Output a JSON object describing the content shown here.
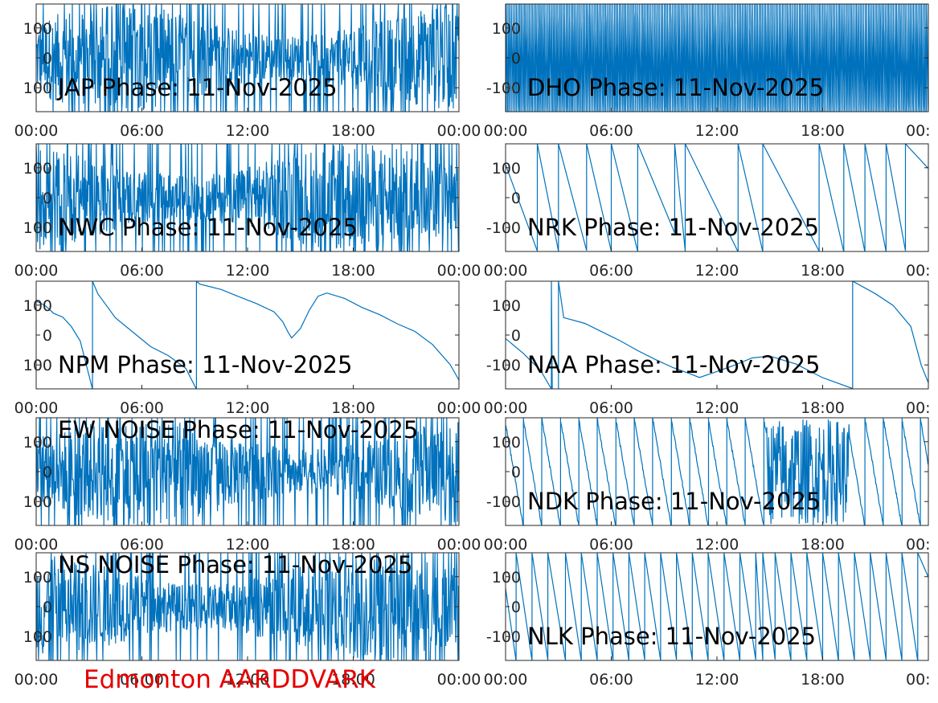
{
  "footer_label": "Edmonton AARDDVARK",
  "colors": {
    "line": "#0072bd",
    "footer": "#e50000",
    "axes": "#262626"
  },
  "chart_data": [
    {
      "type": "line",
      "title": "JAP Phase: 11-Nov-2025",
      "pattern": "noise",
      "xticks": [
        "00:00",
        "06:00",
        "12:00",
        "18:00",
        "00:00"
      ],
      "xlim": [
        0,
        24
      ],
      "yticks": [
        "100",
        "0",
        "100"
      ],
      "ylim": [
        -180,
        180
      ],
      "series": [
        {
          "x": [
            0,
            24
          ],
          "y": [
            -180,
            180
          ]
        }
      ]
    },
    {
      "type": "line",
      "title": "DHO Phase: 11-Nov-2025",
      "pattern": "fast-wrap",
      "xticks": [
        "00:00",
        "06:00",
        "12:00",
        "18:00",
        "00:"
      ],
      "xlim": [
        0,
        24
      ],
      "yticks": [
        "100",
        "0",
        "-100"
      ],
      "ylim": [
        -180,
        180
      ],
      "series": [
        {
          "x": [
            0,
            24
          ],
          "y": [
            -180,
            180
          ]
        }
      ]
    },
    {
      "type": "line",
      "title": "NWC Phase: 11-Nov-2025",
      "pattern": "noise",
      "xticks": [
        "00:00",
        "06:00",
        "12:00",
        "18:00",
        "00:00"
      ],
      "xlim": [
        0,
        24
      ],
      "yticks": [
        "100",
        "0",
        "100"
      ],
      "ylim": [
        -180,
        180
      ],
      "series": [
        {
          "x": [
            0,
            24
          ],
          "y": [
            -180,
            180
          ]
        }
      ]
    },
    {
      "type": "line",
      "title": "NRK Phase: 11-Nov-2025",
      "pattern": "sawtooth",
      "xticks": [
        "00:00",
        "06:00",
        "12:00",
        "18:00",
        "00:"
      ],
      "xlim": [
        0,
        24
      ],
      "yticks": [
        "100",
        "0",
        "-100"
      ],
      "ylim": [
        -180,
        180
      ],
      "series": [
        {
          "x": [
            0,
            1.8,
            1.8,
            3.0,
            3.0,
            4.6,
            4.6,
            6.0,
            6.0,
            7.5,
            7.5,
            9.6,
            9.6,
            10.2,
            10.2,
            13.2,
            13.2,
            14.6,
            14.6,
            17.8,
            17.8,
            19.2,
            19.2,
            20.4,
            20.4,
            21.6,
            21.6,
            22.7,
            22.7,
            24
          ],
          "y": [
            110,
            -180,
            180,
            -180,
            180,
            -180,
            180,
            -180,
            180,
            -180,
            180,
            -120,
            180,
            -180,
            180,
            -180,
            180,
            -180,
            180,
            -180,
            180,
            -180,
            180,
            -180,
            180,
            -180,
            180,
            -180,
            180,
            100
          ]
        }
      ]
    },
    {
      "type": "line",
      "title": "NPM Phase: 11-Nov-2025",
      "pattern": "smooth",
      "xticks": [
        "00:00",
        "06:00",
        "12:00",
        "18:00",
        "00:00"
      ],
      "xlim": [
        0,
        24
      ],
      "yticks": [
        "100",
        "0",
        "100"
      ],
      "ylim": [
        -180,
        180
      ],
      "series": [
        {
          "x": [
            0,
            0.5,
            1.0,
            1.5,
            2.0,
            2.5,
            3.2,
            3.2,
            3.5,
            4.5,
            5.5,
            6.5,
            7.5,
            8.5,
            9.1,
            9.1,
            9.3,
            10.5,
            11.5,
            12.5,
            13.5,
            14.0,
            14.3,
            14.5,
            15.0,
            15.5,
            16.0,
            16.5,
            17.5,
            18.5,
            19.5,
            20.5,
            21.5,
            22.5,
            23.5,
            24.0
          ],
          "y": [
            115,
            100,
            75,
            60,
            30,
            -20,
            -180,
            180,
            140,
            60,
            10,
            -40,
            -70,
            -110,
            -180,
            180,
            170,
            155,
            130,
            105,
            75,
            45,
            10,
            -10,
            20,
            80,
            130,
            140,
            120,
            95,
            65,
            40,
            10,
            -30,
            -100,
            -150
          ]
        }
      ]
    },
    {
      "type": "line",
      "title": "NAA Phase: 11-Nov-2025",
      "pattern": "smooth",
      "xticks": [
        "00:00",
        "06:00",
        "12:00",
        "18:00",
        "00:"
      ],
      "xlim": [
        0,
        24
      ],
      "yticks": [
        "100",
        "0",
        "-100"
      ],
      "ylim": [
        -180,
        180
      ],
      "series": [
        {
          "x": [
            0,
            1.0,
            2.0,
            2.6,
            2.6,
            2.65,
            3.0,
            3.0,
            3.3,
            4.5,
            5.5,
            6.5,
            7.5,
            8.5,
            9.5,
            10.5,
            11.0,
            12.0,
            13.0,
            14.0,
            15.0,
            16.5,
            18.0,
            19.7,
            19.7,
            21.0,
            22.0,
            23.0,
            23.6,
            24.0
          ],
          "y": [
            -10,
            -60,
            -120,
            -180,
            180,
            -180,
            -180,
            180,
            60,
            40,
            10,
            -20,
            -50,
            -80,
            -110,
            -130,
            -140,
            -120,
            -100,
            -75,
            -70,
            -100,
            -140,
            -180,
            180,
            140,
            100,
            30,
            -100,
            -160
          ]
        }
      ]
    },
    {
      "type": "line",
      "title": "EW NOISE Phase: 11-Nov-2025",
      "pattern": "noise",
      "xticks": [
        "00:00",
        "06:00",
        "12:00",
        "18:00",
        "00:00"
      ],
      "xlim": [
        0,
        24
      ],
      "yticks": [
        "100",
        "0",
        "100"
      ],
      "ylim": [
        -180,
        180
      ],
      "series": [
        {
          "x": [
            0,
            24
          ],
          "y": [
            -180,
            180
          ]
        }
      ]
    },
    {
      "type": "line",
      "title": "NDK Phase: 11-Nov-2025",
      "pattern": "sawtooth-noise",
      "xticks": [
        "00:00",
        "06:00",
        "12:00",
        "18:00",
        "00:"
      ],
      "xlim": [
        0,
        24
      ],
      "yticks": [
        "100",
        "0",
        "-100"
      ],
      "ylim": [
        -180,
        180
      ],
      "series": [
        {
          "x": [
            0,
            24
          ],
          "y": [
            -180,
            180
          ]
        }
      ]
    },
    {
      "type": "line",
      "title": "NS NOISE Phase: 11-Nov-2025",
      "pattern": "noise",
      "xticks": [
        "00:00",
        "06:00",
        "12:00",
        "18:00",
        "00:00"
      ],
      "xlim": [
        0,
        24
      ],
      "yticks": [
        "100",
        "0",
        "100"
      ],
      "ylim": [
        -180,
        180
      ],
      "series": [
        {
          "x": [
            0,
            24
          ],
          "y": [
            -180,
            180
          ]
        }
      ]
    },
    {
      "type": "line",
      "title": "NLK Phase: 11-Nov-2025",
      "pattern": "sawtooth",
      "xticks": [
        "00:00",
        "06:00",
        "12:00",
        "18:00",
        "00:"
      ],
      "xlim": [
        0,
        24
      ],
      "yticks": [
        "100",
        "0",
        "-100"
      ],
      "ylim": [
        -180,
        180
      ],
      "series": [
        {
          "x": [
            0,
            0.6,
            0.6,
            1.5,
            1.5,
            2.4,
            2.4,
            3.4,
            3.4,
            4.3,
            4.3,
            5.2,
            5.2,
            6.1,
            6.1,
            7.0,
            7.0,
            7.9,
            7.9,
            8.8,
            8.8,
            9.7,
            9.7,
            10.6,
            10.6,
            11.5,
            11.5,
            12.4,
            12.4,
            13.3,
            13.3,
            14.2,
            14.2,
            14.6,
            14.6,
            15.3,
            15.3,
            16.2,
            16.2,
            17.1,
            17.1,
            18.0,
            18.0,
            18.9,
            18.9,
            19.8,
            19.8,
            20.7,
            20.7,
            21.6,
            21.6,
            22.5,
            22.5,
            23.4,
            23.4,
            24
          ],
          "y": [
            60,
            -180,
            180,
            -180,
            180,
            -180,
            180,
            -180,
            180,
            -180,
            180,
            -180,
            180,
            -180,
            180,
            -180,
            180,
            -180,
            180,
            -180,
            180,
            -180,
            180,
            -180,
            180,
            -180,
            180,
            -180,
            180,
            -180,
            180,
            -180,
            180,
            -180,
            180,
            -180,
            180,
            -180,
            180,
            -180,
            180,
            -180,
            180,
            -180,
            180,
            -180,
            180,
            -180,
            180,
            -180,
            180,
            -180,
            180,
            -180,
            180,
            100
          ]
        }
      ]
    }
  ]
}
